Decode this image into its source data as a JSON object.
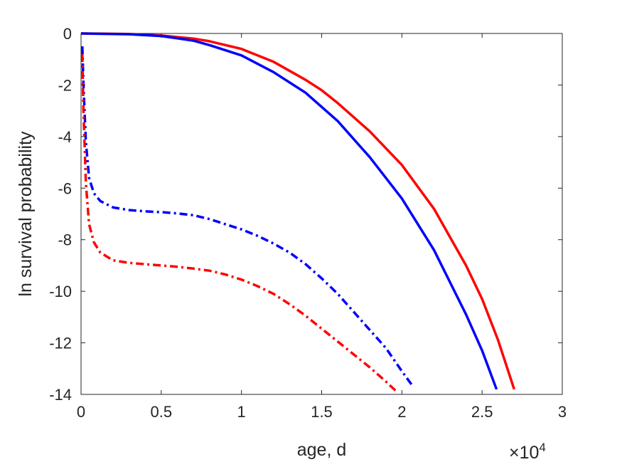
{
  "chart_data": {
    "type": "line",
    "xlabel": "age, d",
    "ylabel": "ln survival probability",
    "x_multiplier": "×10",
    "x_multiplier_exponent": "4",
    "xlim": [
      0,
      30000
    ],
    "ylim": [
      -14,
      0
    ],
    "xticks": [
      0,
      5000,
      10000,
      15000,
      20000,
      25000,
      30000
    ],
    "xtick_labels": [
      "0",
      "0.5",
      "1",
      "1.5",
      "2",
      "2.5",
      "3"
    ],
    "yticks": [
      0,
      -2,
      -4,
      -6,
      -8,
      -10,
      -12,
      -14
    ],
    "ytick_labels": [
      "0",
      "-2",
      "-4",
      "-6",
      "-8",
      "-10",
      "-12",
      "-14"
    ],
    "grid": false,
    "legend": "none",
    "series": [
      {
        "color": "#ff0000",
        "style": "solid",
        "x": [
          0,
          3000,
          5000,
          7000,
          8000,
          10000,
          12000,
          14000,
          15000,
          16000,
          18000,
          20000,
          22000,
          24000,
          25000,
          26000,
          27000
        ],
        "y": [
          0,
          -0.02,
          -0.08,
          -0.2,
          -0.3,
          -0.6,
          -1.1,
          -1.8,
          -2.2,
          -2.7,
          -3.8,
          -5.1,
          -6.8,
          -9.0,
          -10.3,
          -11.9,
          -13.8
        ]
      },
      {
        "color": "#0000ff",
        "style": "solid",
        "x": [
          0,
          3000,
          5000,
          7000,
          8000,
          10000,
          12000,
          14000,
          15000,
          16000,
          18000,
          20000,
          22000,
          24000,
          25000,
          25900
        ],
        "y": [
          0,
          -0.03,
          -0.1,
          -0.28,
          -0.45,
          -0.85,
          -1.5,
          -2.3,
          -2.85,
          -3.4,
          -4.8,
          -6.4,
          -8.4,
          -10.9,
          -12.3,
          -13.8
        ]
      },
      {
        "color": "#0000ff",
        "style": "dashdot",
        "x": [
          80,
          150,
          300,
          500,
          800,
          1200,
          2000,
          3000,
          4000,
          5000,
          6000,
          7000,
          8000,
          9000,
          10000,
          11000,
          12000,
          13000,
          14000,
          15000,
          16000,
          17000,
          18000,
          19000,
          20000,
          20700
        ],
        "y": [
          -0.5,
          -2.0,
          -4.2,
          -5.6,
          -6.2,
          -6.5,
          -6.75,
          -6.85,
          -6.9,
          -6.93,
          -6.98,
          -7.05,
          -7.2,
          -7.4,
          -7.6,
          -7.85,
          -8.15,
          -8.5,
          -8.95,
          -9.5,
          -10.1,
          -10.8,
          -11.5,
          -12.2,
          -13.1,
          -13.7
        ]
      },
      {
        "color": "#ff0000",
        "style": "dashdot",
        "x": [
          80,
          150,
          300,
          500,
          800,
          1200,
          2000,
          3000,
          4000,
          5000,
          6000,
          7000,
          8000,
          9000,
          10000,
          11000,
          12000,
          13000,
          14000,
          15000,
          16000,
          17000,
          18000,
          19000,
          19600
        ],
        "y": [
          -0.8,
          -3.0,
          -5.8,
          -7.4,
          -8.1,
          -8.5,
          -8.8,
          -8.9,
          -8.95,
          -9.0,
          -9.05,
          -9.12,
          -9.2,
          -9.35,
          -9.55,
          -9.8,
          -10.1,
          -10.5,
          -10.95,
          -11.45,
          -11.95,
          -12.45,
          -12.95,
          -13.5,
          -13.85
        ]
      }
    ]
  }
}
